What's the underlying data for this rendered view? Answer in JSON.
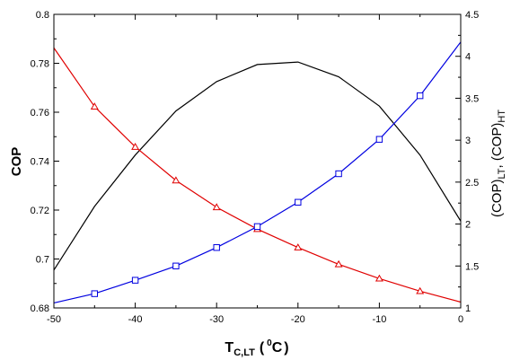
{
  "chart_data": {
    "type": "line",
    "title": "",
    "x": [
      -50,
      -45,
      -40,
      -35,
      -30,
      -25,
      -20,
      -15,
      -10,
      -5,
      0
    ],
    "xlabel": {
      "main": "T",
      "sub": "C,LT",
      "paren_open": "(",
      "sup": "0",
      "unit": "C",
      "paren_close": ")"
    },
    "xlim": [
      -50,
      0
    ],
    "xticks": [
      "-50",
      "-40",
      "-30",
      "-20",
      "-10",
      "0"
    ],
    "ylabel_left": "COP",
    "ylim_left": [
      0.68,
      0.8
    ],
    "yticks_left": [
      "0.68",
      "0.7",
      "0.72",
      "0.74",
      "0.76",
      "0.78",
      "0.8"
    ],
    "ylabel_right": {
      "p1": "(COP)",
      "s1": "LT",
      "p2": ", (COP)",
      "s2": "HT"
    },
    "ylim_right": [
      1,
      4.5
    ],
    "yticks_right": [
      "1",
      "1.5",
      "2",
      "2.5",
      "3",
      "3.5",
      "4",
      "4.5"
    ],
    "grid": false,
    "legend": "none",
    "series": [
      {
        "axis": "left",
        "color": "#000000",
        "marker": "none",
        "values": [
          0.6955,
          0.7215,
          0.7425,
          0.7605,
          0.7725,
          0.7795,
          0.7805,
          0.7745,
          0.7625,
          0.7425,
          0.7155
        ]
      },
      {
        "axis": "right",
        "color": "#e00000",
        "marker": "triangle",
        "values": [
          4.1,
          3.4,
          2.92,
          2.52,
          2.2,
          1.94,
          1.72,
          1.52,
          1.35,
          1.2,
          1.07
        ]
      },
      {
        "axis": "right",
        "color": "#0000e0",
        "marker": "square",
        "values": [
          1.06,
          1.17,
          1.33,
          1.5,
          1.72,
          1.97,
          2.26,
          2.6,
          3.01,
          3.53,
          4.17
        ]
      }
    ]
  }
}
